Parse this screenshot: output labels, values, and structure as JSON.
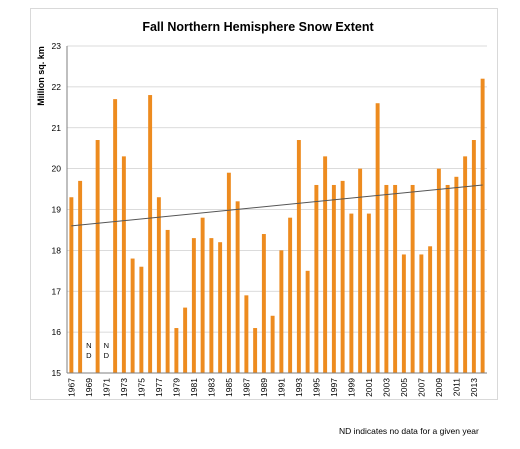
{
  "chart_data": {
    "type": "bar",
    "title": "Fall Northern Hemisphere Snow Extent",
    "ylabel": "Million sq. km",
    "xlabel": "",
    "ylim": [
      15,
      23
    ],
    "yticks": [
      15,
      16,
      17,
      18,
      19,
      20,
      21,
      22,
      23
    ],
    "grid": true,
    "bar_color": "#ED8B1F",
    "trend_color": "#555555",
    "categories": [
      1967,
      1968,
      1969,
      1970,
      1971,
      1972,
      1973,
      1974,
      1975,
      1976,
      1977,
      1978,
      1979,
      1980,
      1981,
      1982,
      1983,
      1984,
      1985,
      1986,
      1987,
      1988,
      1989,
      1990,
      1991,
      1992,
      1993,
      1994,
      1995,
      1996,
      1997,
      1998,
      1999,
      2000,
      2001,
      2002,
      2003,
      2004,
      2005,
      2006,
      2007,
      2008,
      2009,
      2010,
      2011,
      2012,
      2013,
      2014
    ],
    "tick_labels": [
      "1967",
      "1969",
      "1971",
      "1973",
      "1975",
      "1977",
      "1979",
      "1981",
      "1983",
      "1985",
      "1987",
      "1989",
      "1991",
      "1993",
      "1995",
      "1997",
      "1999",
      "2001",
      "2003",
      "2005",
      "2007",
      "2009",
      "2011",
      "2013"
    ],
    "values": [
      19.3,
      19.7,
      null,
      20.7,
      null,
      21.7,
      20.3,
      17.8,
      17.6,
      21.8,
      19.3,
      18.5,
      16.1,
      16.6,
      18.3,
      18.8,
      18.3,
      18.2,
      19.9,
      19.2,
      16.9,
      16.1,
      18.4,
      16.4,
      18.0,
      18.8,
      20.7,
      17.5,
      19.6,
      20.3,
      19.6,
      19.7,
      18.9,
      20.0,
      18.9,
      21.6,
      19.6,
      19.6,
      17.9,
      19.6,
      17.9,
      18.1,
      20.0,
      19.6,
      19.8,
      20.3,
      20.7,
      22.2
    ],
    "nd_label_top": "N",
    "nd_label_bottom": "D",
    "trend": {
      "start": 18.6,
      "end": 19.6
    },
    "annotation": "ND indicates no data for a given year"
  }
}
